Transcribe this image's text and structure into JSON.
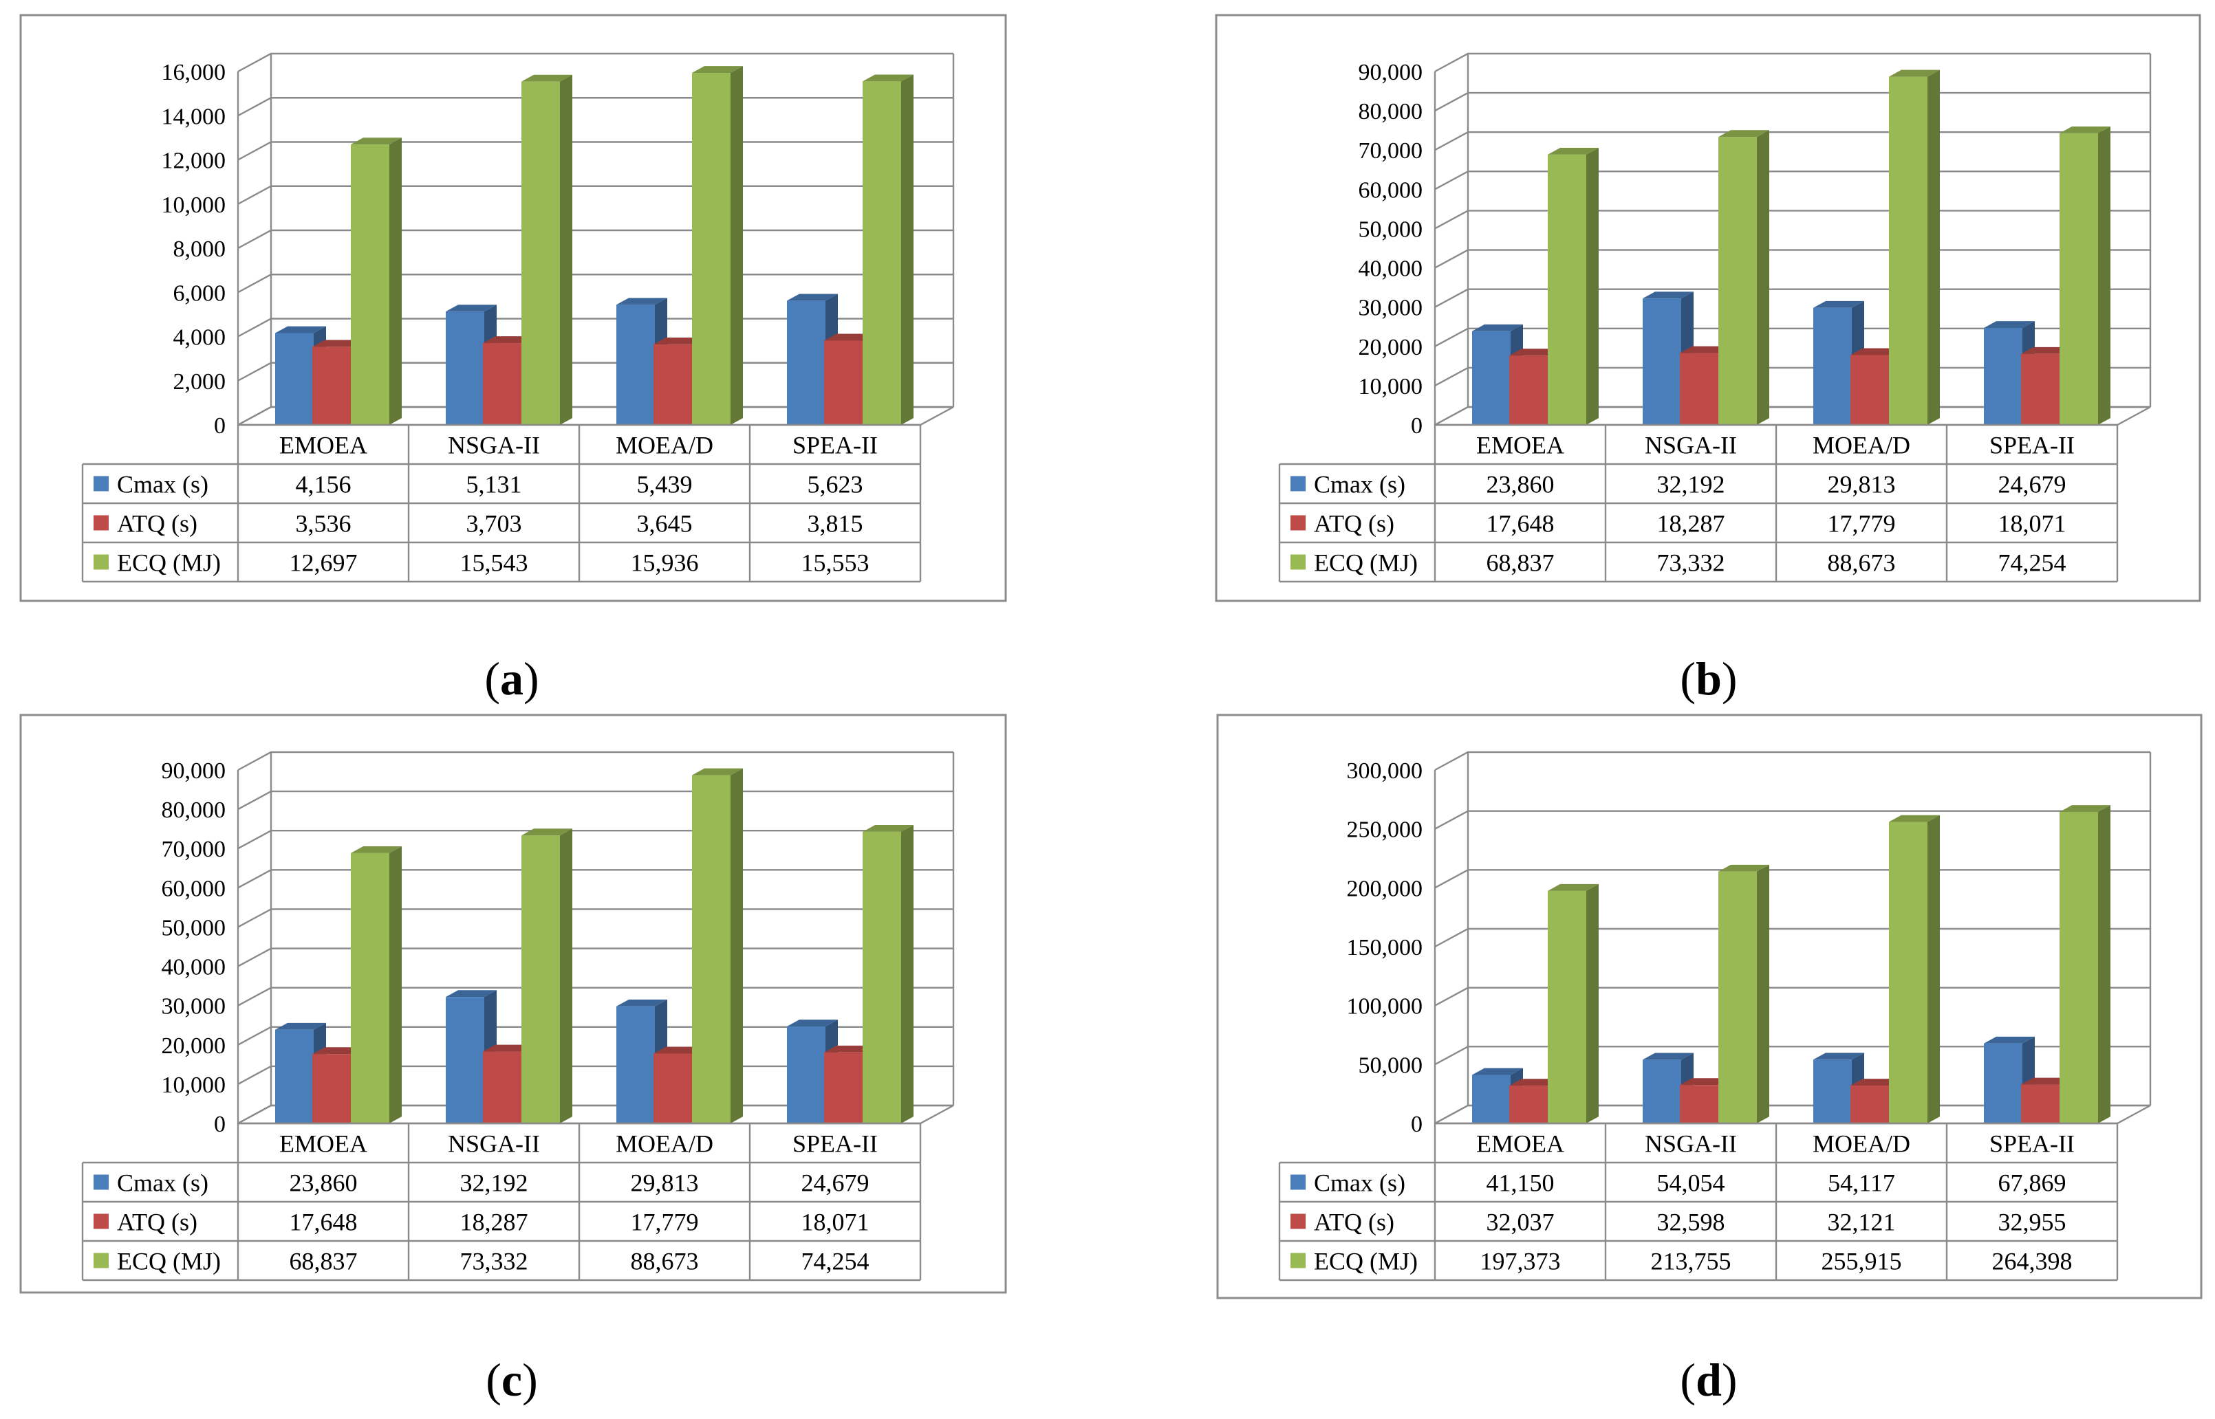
{
  "chart_data": [
    {
      "type": "bar",
      "panel_label": "a",
      "categories": [
        "EMOEA",
        "NSGA-II",
        "MOEA/D",
        "SPEA-II"
      ],
      "ylim": [
        0,
        16000
      ],
      "y_ticks": [
        "0",
        "2,000",
        "4,000",
        "6,000",
        "8,000",
        "10,000",
        "12,000",
        "14,000",
        "16,000"
      ],
      "series": [
        {
          "name": "Cmax (s)",
          "color": "#4a7ebb",
          "values": [
            4156,
            5131,
            5439,
            5623
          ],
          "labels": [
            "4,156",
            "5,131",
            "5,439",
            "5,623"
          ]
        },
        {
          "name": "ATQ (s)",
          "color": "#be4b48",
          "values": [
            3536,
            3703,
            3645,
            3815
          ],
          "labels": [
            "3,536",
            "3,703",
            "3,645",
            "3,815"
          ]
        },
        {
          "name": "ECQ (MJ)",
          "color": "#98b954",
          "values": [
            12697,
            15543,
            15936,
            15553
          ],
          "labels": [
            "12,697",
            "15,543",
            "15,936",
            "15,553"
          ]
        }
      ]
    },
    {
      "type": "bar",
      "panel_label": "b",
      "categories": [
        "EMOEA",
        "NSGA-II",
        "MOEA/D",
        "SPEA-II"
      ],
      "ylim": [
        0,
        90000
      ],
      "y_ticks": [
        "0",
        "10,000",
        "20,000",
        "30,000",
        "40,000",
        "50,000",
        "60,000",
        "70,000",
        "80,000",
        "90,000"
      ],
      "series": [
        {
          "name": "Cmax (s)",
          "color": "#4a7ebb",
          "values": [
            23860,
            32192,
            29813,
            24679
          ],
          "labels": [
            "23,860",
            "32,192",
            "29,813",
            "24,679"
          ]
        },
        {
          "name": "ATQ (s)",
          "color": "#be4b48",
          "values": [
            17648,
            18287,
            17779,
            18071
          ],
          "labels": [
            "17,648",
            "18,287",
            "17,779",
            "18,071"
          ]
        },
        {
          "name": "ECQ (MJ)",
          "color": "#98b954",
          "values": [
            68837,
            73332,
            88673,
            74254
          ],
          "labels": [
            "68,837",
            "73,332",
            "88,673",
            "74,254"
          ]
        }
      ]
    },
    {
      "type": "bar",
      "panel_label": "c",
      "categories": [
        "EMOEA",
        "NSGA-II",
        "MOEA/D",
        "SPEA-II"
      ],
      "ylim": [
        0,
        90000
      ],
      "y_ticks": [
        "0",
        "10,000",
        "20,000",
        "30,000",
        "40,000",
        "50,000",
        "60,000",
        "70,000",
        "80,000",
        "90,000"
      ],
      "series": [
        {
          "name": "Cmax (s)",
          "color": "#4a7ebb",
          "values": [
            23860,
            32192,
            29813,
            24679
          ],
          "labels": [
            "23,860",
            "32,192",
            "29,813",
            "24,679"
          ]
        },
        {
          "name": "ATQ (s)",
          "color": "#be4b48",
          "values": [
            17648,
            18287,
            17779,
            18071
          ],
          "labels": [
            "17,648",
            "18,287",
            "17,779",
            "18,071"
          ]
        },
        {
          "name": "ECQ (MJ)",
          "color": "#98b954",
          "values": [
            68837,
            73332,
            88673,
            74254
          ],
          "labels": [
            "68,837",
            "73,332",
            "88,673",
            "74,254"
          ]
        }
      ]
    },
    {
      "type": "bar",
      "panel_label": "d",
      "categories": [
        "EMOEA",
        "NSGA-II",
        "MOEA/D",
        "SPEA-II"
      ],
      "ylim": [
        0,
        300000
      ],
      "y_ticks": [
        "0",
        "50,000",
        "100,000",
        "150,000",
        "200,000",
        "250,000",
        "300,000"
      ],
      "series": [
        {
          "name": "Cmax (s)",
          "color": "#4a7ebb",
          "values": [
            41150,
            54054,
            54117,
            67869
          ],
          "labels": [
            "41,150",
            "54,054",
            "54,117",
            "67,869"
          ]
        },
        {
          "name": "ATQ (s)",
          "color": "#be4b48",
          "values": [
            32037,
            32598,
            32121,
            32955
          ],
          "labels": [
            "32,037",
            "32,598",
            "32,121",
            "32,955"
          ]
        },
        {
          "name": "ECQ (MJ)",
          "color": "#98b954",
          "values": [
            197373,
            213755,
            255915,
            264398
          ],
          "labels": [
            "197,373",
            "213,755",
            "255,915",
            "264,398"
          ]
        }
      ]
    }
  ]
}
